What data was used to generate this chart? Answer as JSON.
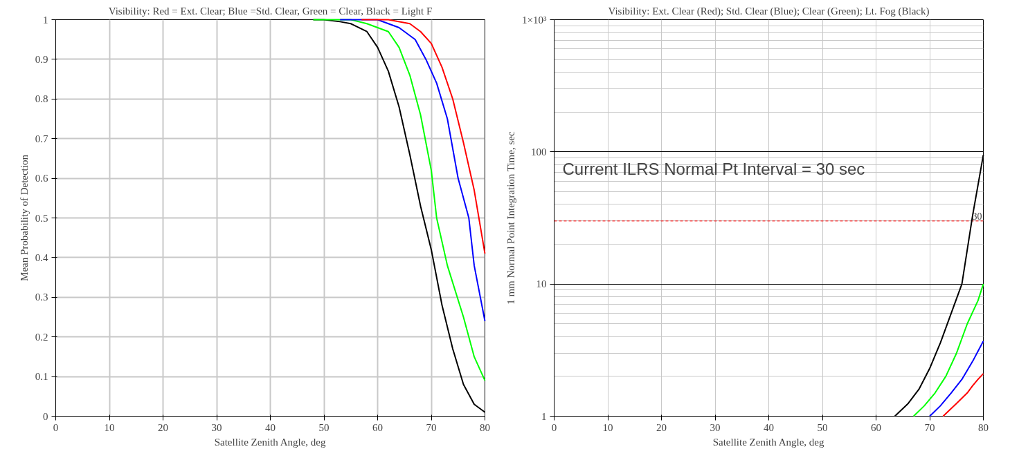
{
  "chart_data": [
    {
      "type": "line",
      "title": "Visibility: Red = Ext. Clear; Blue =Std. Clear, Green = Clear, Black = Light F",
      "xlabel": "Satellite Zenith Angle, deg",
      "ylabel": "Mean Probability of Detection",
      "xlim": [
        0,
        80
      ],
      "xticks": [
        0,
        10,
        20,
        30,
        40,
        50,
        60,
        70,
        80
      ],
      "ylim": [
        0,
        1
      ],
      "yticks": [
        0,
        0.1,
        0.2,
        0.3,
        0.4,
        0.5,
        0.6,
        0.7,
        0.8,
        0.9,
        1
      ],
      "grid": true,
      "marker": "none",
      "line_style": "solid",
      "series": [
        {
          "color": "#000000",
          "x": [
            48,
            50,
            53,
            55,
            58,
            60,
            62,
            64,
            66,
            68,
            70,
            72,
            74,
            76,
            78,
            80
          ],
          "values": [
            1,
            1,
            0.995,
            0.99,
            0.97,
            0.93,
            0.87,
            0.78,
            0.66,
            0.53,
            0.42,
            0.28,
            0.17,
            0.08,
            0.03,
            0.01
          ]
        },
        {
          "color": "#00ff00",
          "x": [
            48,
            55,
            58,
            62,
            64,
            66,
            68,
            70,
            71,
            73,
            76,
            78,
            80
          ],
          "values": [
            1,
            1,
            0.99,
            0.97,
            0.93,
            0.86,
            0.76,
            0.62,
            0.5,
            0.38,
            0.25,
            0.15,
            0.09
          ]
        },
        {
          "color": "#0000ff",
          "x": [
            53,
            60,
            64,
            67,
            69,
            71,
            73,
            75,
            77,
            78,
            80
          ],
          "values": [
            1,
            1,
            0.98,
            0.95,
            0.9,
            0.84,
            0.75,
            0.6,
            0.5,
            0.38,
            0.24
          ]
        },
        {
          "color": "#ff0000",
          "x": [
            57,
            62,
            66,
            68,
            70,
            72,
            74,
            76,
            78,
            80
          ],
          "values": [
            1,
            1,
            0.99,
            0.97,
            0.94,
            0.88,
            0.8,
            0.69,
            0.57,
            0.41
          ]
        }
      ]
    },
    {
      "type": "line",
      "title": "Visibility: Ext. Clear (Red); Std. Clear (Blue); Clear (Green); Lt. Fog (Black)",
      "xlabel": "Satellite Zenith Angle, deg",
      "ylabel": "1 mm Normal Point Integration Time, sec",
      "log": "y",
      "xlim": [
        0,
        80
      ],
      "xticks": [
        0,
        10,
        20,
        30,
        40,
        50,
        60,
        70,
        80
      ],
      "ylim": [
        1,
        1000
      ],
      "yticks": [
        1,
        10,
        100,
        {
          "value": 1000,
          "label": "1×10³"
        }
      ],
      "grid": true,
      "marker": "none",
      "line_style": "solid",
      "ref_lines": [
        {
          "axis": "y",
          "value": 30,
          "label": "30",
          "color": "#ff0000",
          "line_style": "dashed"
        }
      ],
      "annotations": [
        "Current ILRS Normal Pt Interval = 30 sec"
      ],
      "series": [
        {
          "color": "#000000",
          "x": [
            63.5,
            66,
            68,
            70,
            72,
            74,
            76,
            78,
            80
          ],
          "values": [
            1,
            1.25,
            1.6,
            2.3,
            3.6,
            6,
            10,
            33,
            95
          ]
        },
        {
          "color": "#00ff00",
          "x": [
            67,
            69,
            71,
            73,
            75,
            77,
            79,
            80
          ],
          "values": [
            1,
            1.2,
            1.5,
            2,
            3,
            5,
            7.5,
            10
          ]
        },
        {
          "color": "#0000ff",
          "x": [
            70,
            72,
            74,
            76,
            78,
            80
          ],
          "values": [
            1,
            1.2,
            1.5,
            1.9,
            2.6,
            3.7
          ]
        },
        {
          "color": "#ff0000",
          "x": [
            72.5,
            75,
            77,
            78,
            79,
            80
          ],
          "values": [
            1,
            1.25,
            1.5,
            1.7,
            1.9,
            2.1
          ]
        }
      ]
    }
  ]
}
